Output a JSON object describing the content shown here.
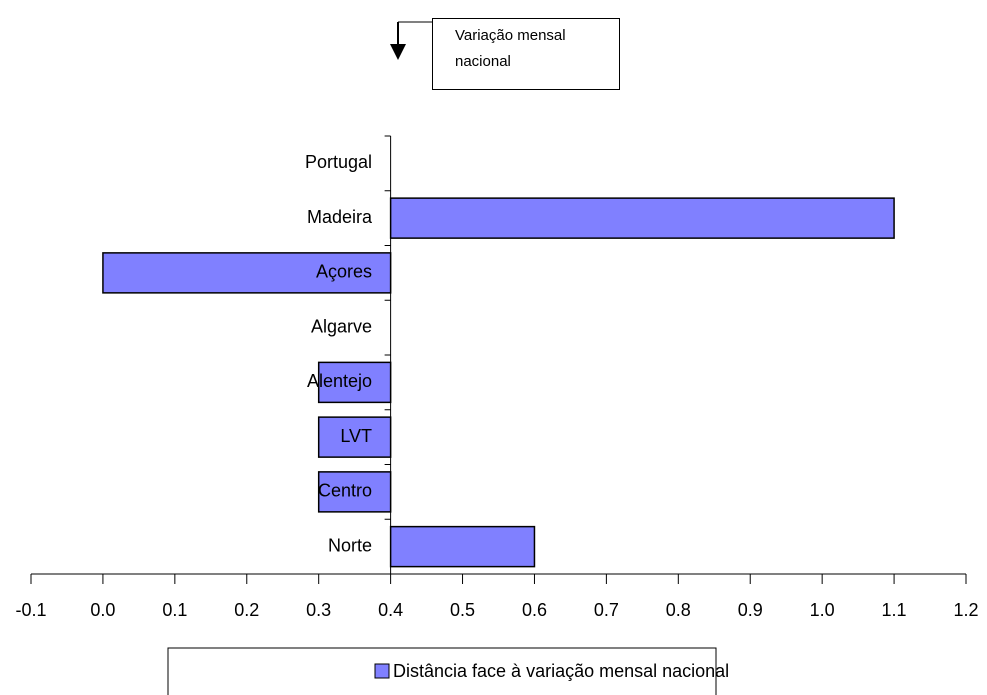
{
  "chart_data": {
    "type": "bar",
    "orientation": "horizontal",
    "annotation": "Variação mensal nacional",
    "categories": [
      "Portugal",
      "Madeira",
      "Açores",
      "Algarve",
      "Alentejo",
      "LVT",
      "Centro",
      "Norte"
    ],
    "series": [
      {
        "name": "Distância face à variação mensal nacional",
        "color": "#8080ff",
        "values": [
          0.4,
          1.1,
          0.0,
          0.4,
          0.3,
          0.3,
          0.3,
          0.6
        ]
      }
    ],
    "baseline": 0.4,
    "xlim": [
      -0.1,
      1.2
    ],
    "xticks": [
      -0.1,
      {
        "value": 0,
        "label": "0.0"
      },
      0.1,
      0.2,
      0.3,
      0.4,
      0.5,
      0.6,
      0.7,
      0.8,
      0.9,
      {
        "value": 1,
        "label": "1.0"
      },
      1.1,
      1.2
    ],
    "legend": "bottom",
    "grid": false
  }
}
